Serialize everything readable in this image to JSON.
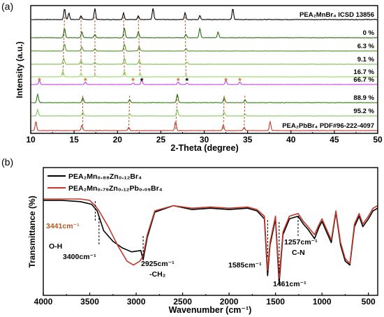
{
  "colors": {
    "axis": "#000000",
    "star_orange": "#d0703a",
    "star_black": "#000000",
    "guide_line": "#c0552a",
    "ftir_black": "#000000",
    "ftir_red": "#c0392b"
  },
  "panel_a": {
    "label": "(a)",
    "xlabel": "2-Theta (degree)",
    "ylabel": "Intensity (a.u.)",
    "xticks": [
      "10",
      "15",
      "20",
      "25",
      "30",
      "35",
      "40",
      "45",
      "50"
    ],
    "curve_labels": [
      "PEA₂MnBr₄ ICSD 13856",
      "0 %",
      "6.3 %",
      "9.1 %",
      "16.7 %",
      "66.7 %",
      "88.9 %",
      "95.2 %",
      "PEA₂PbBr₄ PDF#96-222-4097"
    ]
  },
  "panel_b": {
    "label": "(b)",
    "xlabel": "Wavenumber (cm⁻¹)",
    "ylabel": "Transmittance (%)",
    "xticks": [
      "4000",
      "3500",
      "3000",
      "2500",
      "2000",
      "1500",
      "1000",
      "500"
    ],
    "legend": [
      "PEA₂Mn₀.₈₈Zn₀.₁₂Br₄",
      "PEA₂Mn₀.₇₉Zn₀.₁₂Pb₀.₀₉Br₄"
    ],
    "annotations": {
      "peak_3441": "3441cm⁻¹",
      "oh": "O-H",
      "peak_3400": "3400cm⁻¹",
      "peak_2925": "2925cm⁻¹",
      "ch2": "-CH₂",
      "peak_1585": "1585cm⁻¹",
      "peak_1461": "1461cm⁻¹",
      "peak_1257": "1257cm⁻¹",
      "cn": "C-N"
    }
  },
  "chart_data": [
    {
      "type": "line",
      "panel": "(a)",
      "xlabel": "2-Theta (degree)",
      "ylabel": "Intensity (a.u.)",
      "xlim": [
        10,
        50
      ],
      "series": [
        {
          "name": "PEA₂MnBr₄ ICSD 13856",
          "color": "#000000",
          "peaks": [
            13.9,
            14.4,
            15.8,
            17.4,
            20.7,
            22.4,
            24.1,
            27.8,
            29.5,
            33.3
          ]
        },
        {
          "name": "0 %",
          "color": "#2d6a14",
          "peaks": [
            13.9,
            15.9,
            17.4,
            20.8,
            22.4,
            27.9,
            29.5,
            31.6
          ]
        },
        {
          "name": "6.3 %",
          "color": "#4e8f26",
          "peaks": [
            13.9,
            15.9,
            17.4,
            20.8,
            22.5,
            27.9
          ]
        },
        {
          "name": "9.1 %",
          "color": "#74c04a",
          "peaks": [
            13.8,
            15.8,
            17.4,
            20.8,
            22.5,
            28.0
          ]
        },
        {
          "name": "16.7 %",
          "color": "#8fdd60",
          "peaks": [
            13.7,
            15.8,
            17.4,
            20.8,
            22.6,
            27.9
          ]
        },
        {
          "name": "66.7 %",
          "color": "#c040e0",
          "peaks": [
            11.0,
            16.3,
            21.8,
            22.8,
            27.0,
            28.0,
            32.5,
            34.1
          ]
        },
        {
          "name": "88.9 %",
          "color": "#2f7a16",
          "peaks": [
            10.8,
            16.0,
            21.4,
            26.9,
            32.3,
            34.7
          ]
        },
        {
          "name": "95.2 %",
          "color": "#7fc85a",
          "peaks": [
            10.8,
            16.0,
            21.4,
            26.9,
            32.3,
            34.7
          ]
        },
        {
          "name": "PEA₂PbBr₄ PDF#96-222-4097",
          "color": "#c0392b",
          "peaks": [
            10.6,
            15.9,
            21.3,
            26.7,
            32.2,
            34.6,
            37.6
          ]
        }
      ]
    },
    {
      "type": "line",
      "panel": "(b)",
      "xlabel": "Wavenumber (cm⁻¹)",
      "ylabel": "Transmittance (%)",
      "xlim": [
        4000,
        400
      ],
      "series": [
        {
          "name": "PEA₂Mn₀.₈₈Zn₀.₁₂Br₄",
          "color": "#000000",
          "x": [
            4000,
            3800,
            3600,
            3480,
            3420,
            3350,
            3250,
            3150,
            3050,
            2950,
            2925,
            2880,
            2800,
            2600,
            2400,
            2200,
            2000,
            1800,
            1700,
            1620,
            1585,
            1560,
            1500,
            1461,
            1420,
            1350,
            1257,
            1200,
            1150,
            1080,
            1030,
            1000,
            950,
            900,
            850,
            800,
            750,
            700,
            650,
            600,
            560,
            500,
            450,
            400
          ],
          "y": [
            94,
            94,
            93,
            91,
            86,
            71,
            63,
            58,
            55,
            56,
            49,
            66,
            85,
            90,
            87,
            88,
            87,
            88,
            86,
            80,
            37,
            60,
            80,
            31,
            68,
            80,
            82,
            76,
            72,
            65,
            74,
            78,
            70,
            62,
            85,
            60,
            48,
            45,
            74,
            82,
            74,
            80,
            86,
            88
          ]
        },
        {
          "name": "PEA₂Mn₀.₇₉Zn₀.₁₂Pb₀.₀₉Br₄",
          "color": "#c0392b",
          "x": [
            4000,
            3800,
            3600,
            3500,
            3441,
            3400,
            3300,
            3200,
            3100,
            3030,
            2960,
            2925,
            2880,
            2800,
            2600,
            2400,
            2200,
            2000,
            1800,
            1700,
            1620,
            1585,
            1560,
            1500,
            1461,
            1420,
            1350,
            1257,
            1200,
            1150,
            1080,
            1030,
            1000,
            950,
            900,
            850,
            800,
            750,
            700,
            650,
            600,
            560,
            500,
            450,
            400
          ],
          "y": [
            95,
            95,
            95,
            94,
            90,
            86,
            74,
            60,
            48,
            45,
            48,
            52,
            68,
            86,
            90,
            88,
            89,
            88,
            89,
            87,
            82,
            41,
            62,
            82,
            35,
            70,
            82,
            84,
            78,
            74,
            68,
            76,
            80,
            72,
            64,
            86,
            62,
            50,
            46,
            76,
            84,
            76,
            82,
            88,
            90
          ]
        }
      ]
    }
  ]
}
